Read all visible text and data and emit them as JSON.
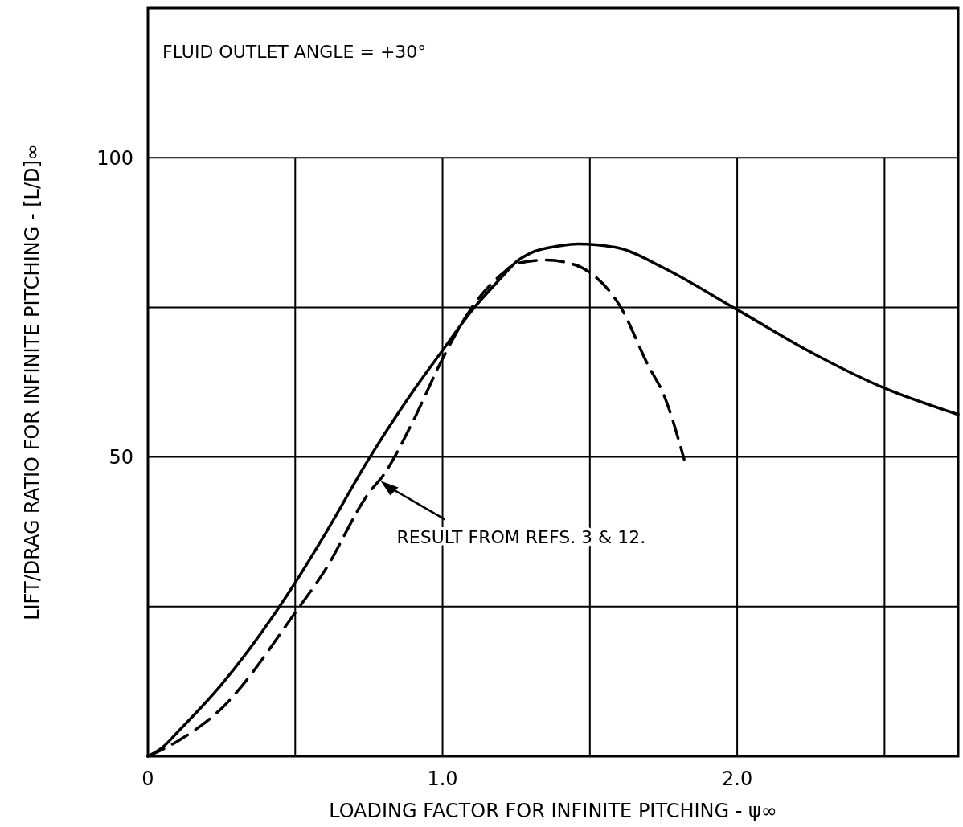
{
  "chart_data": {
    "type": "line",
    "xlabel": "LOADING FACTOR FOR INFINITE PITCHING - ψ∞",
    "ylabel": "LIFT/DRAG RATIO FOR INFINITE PITCHING - [L/D]∞",
    "xlim": [
      0,
      2.75
    ],
    "ylim": [
      0,
      125
    ],
    "xticks": [
      0,
      {
        "value": 0.5,
        "label": null
      },
      {
        "value": 1,
        "label": "1.0"
      },
      {
        "value": 1.5,
        "label": null
      },
      {
        "value": 2,
        "label": "2.0"
      },
      {
        "value": 2.5,
        "label": null
      }
    ],
    "yticks": [
      {
        "value": 25,
        "label": null
      },
      50,
      {
        "value": 75,
        "label": null
      },
      100
    ],
    "grid": true,
    "marker": "none",
    "series": [
      {
        "color": "#000000",
        "line_style": "solid",
        "x": [
          0,
          0.05,
          0.1,
          0.25,
          0.5,
          0.6,
          0.75,
          0.9,
          1.0,
          1.1,
          1.2,
          1.25,
          1.3,
          1.4,
          1.46,
          1.6,
          1.75,
          2.0,
          2.25,
          2.5,
          2.75
        ],
        "values": [
          0,
          1.5,
          4,
          12,
          29,
          37,
          49.7,
          61,
          67.8,
          74.5,
          80,
          82.6,
          84.1,
          85.3,
          85.6,
          84.9,
          81.6,
          74.6,
          67.5,
          61.5,
          57.1
        ]
      },
      {
        "color": "#000000",
        "line_style": "dashed",
        "x": [
          0,
          0.1,
          0.25,
          0.5,
          0.6,
          0.75,
          0.8,
          0.9,
          1.0,
          1.1,
          1.2,
          1.25,
          1.35,
          1.45,
          1.5,
          1.6,
          1.7,
          1.75,
          1.82
        ],
        "values": [
          0,
          2.5,
          8,
          24,
          31,
          44,
          47,
          56,
          66.4,
          75,
          80.5,
          82.3,
          82.9,
          82.1,
          80.8,
          75.4,
          65.1,
          60.5,
          49.6
        ]
      }
    ],
    "annotations": [
      "FLUID OUTLET ANGLE = +30°",
      {
        "text": "RESULT FROM REFS. 3 & 12.",
        "x": 0.79,
        "y": 46
      }
    ]
  }
}
